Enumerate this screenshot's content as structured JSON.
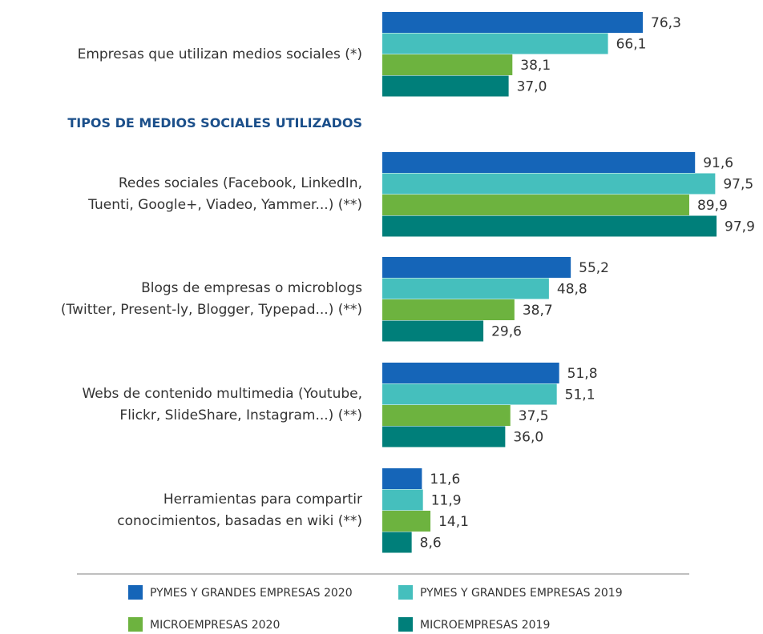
{
  "chart_data": {
    "type": "bar",
    "orientation": "horizontal",
    "section_label": "TIPOS DE MEDIOS SOCIALES UTILIZADOS",
    "categories": [
      "Empresas que utilizan medios sociales (*)",
      "Redes sociales (Facebook, LinkedIn,\nTuenti, Google+, Viadeo, Yammer...) (**)",
      "Blogs de empresas o microblogs\n(Twitter, Present-ly, Blogger, Typepad...) (**)",
      "Webs de contenido multimedia (Youtube,\nFlickr,  SlideShare, Instagram...) (**)",
      "Herramientas para compartir\nconocimientos, basadas en wiki (**)"
    ],
    "series": [
      {
        "name": "PYMES Y GRANDES EMPRESAS 2020",
        "color": "#1565b8",
        "values": [
          76.3,
          91.6,
          55.2,
          51.8,
          11.6
        ],
        "value_labels": [
          "76,3",
          "91,6",
          "55,2",
          "51,8",
          "11,6"
        ]
      },
      {
        "name": "PYMES Y GRANDES EMPRESAS 2019",
        "color": "#45bfbd",
        "values": [
          66.1,
          97.5,
          48.8,
          51.1,
          11.9
        ],
        "value_labels": [
          "66,1",
          "97,5",
          "48,8",
          "51,1",
          "11,9"
        ]
      },
      {
        "name": "MICROEMPRESAS 2020",
        "color": "#6db33f",
        "values": [
          38.1,
          89.9,
          38.7,
          37.5,
          14.1
        ],
        "value_labels": [
          "38,1",
          "89,9",
          "38,7",
          "37,5",
          "14,1"
        ]
      },
      {
        "name": "MICROEMPRESAS 2019",
        "color": "#007f7a",
        "values": [
          37.0,
          97.9,
          29.6,
          36.0,
          8.6
        ],
        "value_labels": [
          "37,0",
          "97,9",
          "29,6",
          "36,0",
          "8,6"
        ]
      }
    ]
  }
}
